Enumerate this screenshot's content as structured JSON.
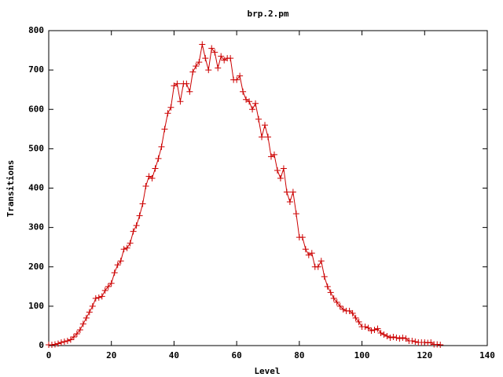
{
  "chart_data": {
    "type": "line",
    "title": "brp.2.pm",
    "x_label": "Level",
    "y_label": "Transitions",
    "x": [
      0,
      1,
      2,
      3,
      4,
      5,
      6,
      7,
      8,
      9,
      10,
      11,
      12,
      13,
      14,
      15,
      16,
      17,
      18,
      19,
      20,
      21,
      22,
      23,
      24,
      25,
      26,
      27,
      28,
      29,
      30,
      31,
      32,
      33,
      34,
      35,
      36,
      37,
      38,
      39,
      40,
      41,
      42,
      43,
      44,
      45,
      46,
      47,
      48,
      49,
      50,
      51,
      52,
      53,
      54,
      55,
      56,
      57,
      58,
      59,
      60,
      61,
      62,
      63,
      64,
      65,
      66,
      67,
      68,
      69,
      70,
      71,
      72,
      73,
      74,
      75,
      76,
      77,
      78,
      79,
      80,
      81,
      82,
      83,
      84,
      85,
      86,
      87,
      88,
      89,
      90,
      91,
      92,
      93,
      94,
      95,
      96,
      97,
      98,
      99,
      100,
      101,
      102,
      103,
      104,
      105,
      106,
      107,
      108,
      109,
      110,
      111,
      112,
      113,
      114,
      115,
      116,
      117,
      118,
      119,
      120,
      121,
      122,
      123,
      124,
      125
    ],
    "series": [
      {
        "color": "#cc0000",
        "values": [
          2,
          2,
          3,
          5,
          8,
          10,
          12,
          15,
          22,
          30,
          40,
          55,
          70,
          85,
          100,
          120,
          122,
          125,
          140,
          150,
          158,
          185,
          205,
          215,
          245,
          248,
          260,
          290,
          305,
          330,
          360,
          405,
          430,
          425,
          450,
          475,
          505,
          550,
          590,
          605,
          660,
          665,
          620,
          665,
          665,
          645,
          695,
          710,
          720,
          765,
          730,
          700,
          755,
          745,
          705,
          735,
          725,
          730,
          730,
          675,
          675,
          685,
          645,
          625,
          620,
          600,
          615,
          575,
          530,
          560,
          530,
          480,
          485,
          445,
          425,
          450,
          390,
          365,
          390,
          335,
          275,
          275,
          245,
          230,
          235,
          200,
          200,
          215,
          175,
          150,
          135,
          120,
          110,
          100,
          92,
          88,
          88,
          82,
          70,
          60,
          48,
          48,
          45,
          38,
          40,
          43,
          32,
          28,
          24,
          20,
          22,
          20,
          18,
          20,
          18,
          12,
          12,
          10,
          8,
          8,
          8,
          7,
          8,
          3,
          3,
          2
        ]
      }
    ],
    "xlim": [
      0,
      140
    ],
    "ylim": [
      0,
      800
    ],
    "xticks": [
      0,
      20,
      40,
      60,
      80,
      100,
      120,
      140
    ],
    "yticks": [
      0,
      100,
      200,
      300,
      400,
      500,
      600,
      700,
      800
    ]
  }
}
